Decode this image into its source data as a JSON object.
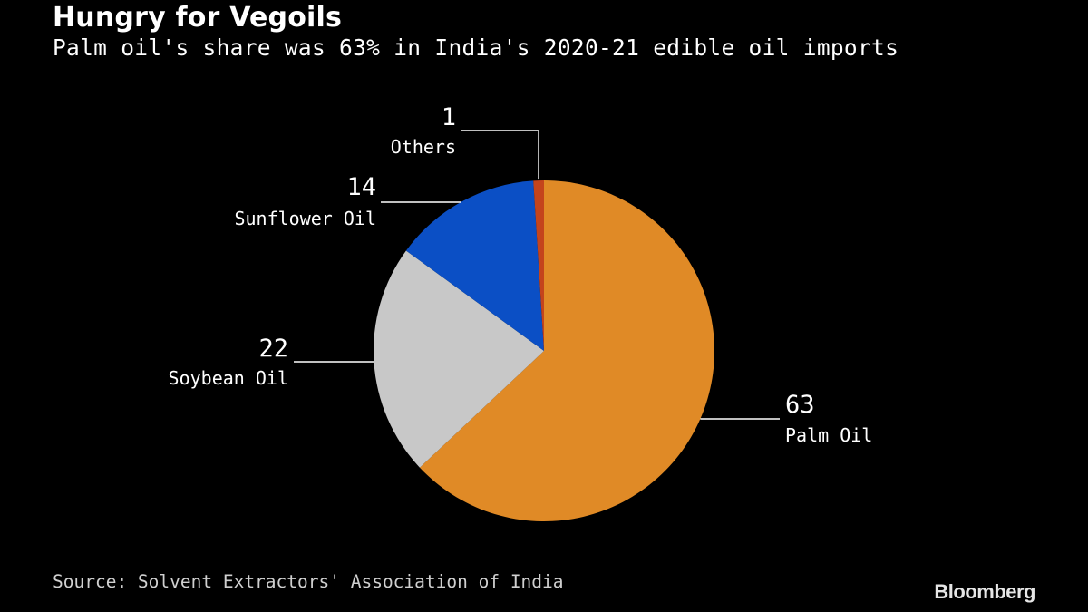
{
  "title": "Hungry for Vegoils",
  "subtitle": "Palm oil's share was 63% in India's 2020-21 edible oil imports",
  "source": "Source: Solvent Extractors' Association of India",
  "brand": "Bloomberg",
  "chart_data": {
    "type": "pie",
    "unit": "percent",
    "slices": [
      {
        "name": "Palm Oil",
        "value": 63,
        "color": "#e08a26"
      },
      {
        "name": "Soybean Oil",
        "value": 22,
        "color": "#c8c8c8"
      },
      {
        "name": "Sunflower Oil",
        "value": 14,
        "color": "#0b4fc5"
      },
      {
        "name": "Others",
        "value": 1,
        "color": "#c4441c"
      }
    ],
    "start": "12 o'clock",
    "direction": "clockwise",
    "legend": "none (leader-line labels)"
  }
}
